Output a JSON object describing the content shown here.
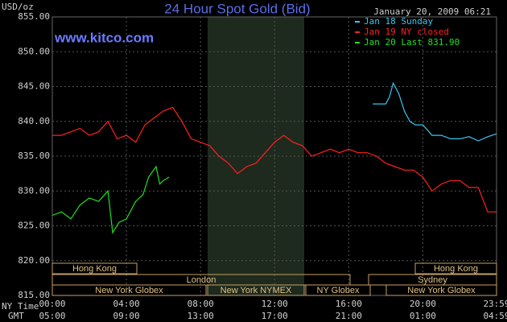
{
  "chart_data": {
    "type": "line",
    "title": "24 Hour Spot Gold (Bid)",
    "website": "www.kitco.com",
    "timestamp": "January 20, 2009 06:21",
    "y_label": "USD/oz",
    "x_label": "NY Time",
    "x2_label": "GMT",
    "xlim": [
      0,
      23.98
    ],
    "ylim": [
      815,
      855
    ],
    "grid": true,
    "yticks": [
      {
        "value": 815,
        "label": "815.00"
      },
      {
        "value": 820,
        "label": "820.00"
      },
      {
        "value": 825,
        "label": "825.00"
      },
      {
        "value": 830,
        "label": "830.00"
      },
      {
        "value": 835,
        "label": "835.00"
      },
      {
        "value": 840,
        "label": "840.00"
      },
      {
        "value": 845,
        "label": "845.00"
      },
      {
        "value": 850,
        "label": "850.00"
      },
      {
        "value": 855,
        "label": "855.00"
      }
    ],
    "xticks": [
      {
        "value": 0,
        "label": "00:00"
      },
      {
        "value": 4,
        "label": "04:00"
      },
      {
        "value": 8,
        "label": "08:00"
      },
      {
        "value": 12,
        "label": "12:00"
      },
      {
        "value": 16,
        "label": "16:00"
      },
      {
        "value": 20,
        "label": "20:00"
      },
      {
        "value": 23.98,
        "label": "23:59"
      }
    ],
    "gmt_labels": [
      "05:00",
      "09:00",
      "13:00",
      "17:00",
      "21:00",
      "01:00",
      "04:59"
    ],
    "sessions": [
      "Hong Kong",
      "London",
      "New York Globex",
      "New York NYMEX",
      "NY Globex",
      "Sydney",
      "Hong Kong",
      "New York Globex"
    ],
    "series": [
      {
        "name": "Jan 18 Sunday",
        "color": "#33c8f0",
        "x": [
          17.3,
          18,
          18.2,
          18.4,
          18.7,
          19,
          19.3,
          19.6,
          20,
          20.5,
          21,
          21.5,
          22,
          22.5,
          23,
          23.5,
          23.98
        ],
        "values": [
          842.5,
          842.5,
          843.5,
          845.5,
          844,
          841.5,
          840,
          839.5,
          839.5,
          838,
          838,
          837.5,
          837.5,
          837.8,
          837.2,
          837.8,
          838.2
        ]
      },
      {
        "name": "Jan 19 NY closed",
        "color": "#ff2020",
        "x": [
          0,
          0.5,
          1,
          1.5,
          2,
          2.5,
          3,
          3.5,
          4,
          4.5,
          5,
          5.5,
          6,
          6.5,
          7,
          7.5,
          8,
          8.5,
          9,
          9.5,
          10,
          10.5,
          11,
          11.5,
          12,
          12.5,
          13,
          13.5,
          14,
          14.5,
          15,
          15.5,
          16,
          16.5,
          17,
          17.5,
          18,
          18.5,
          19,
          19.5,
          20,
          20.5,
          21,
          21.5,
          22,
          22.5,
          23,
          23.5,
          23.98
        ],
        "values": [
          838,
          838,
          838.5,
          839,
          838,
          838.5,
          840,
          837.5,
          838,
          837,
          839.5,
          840.5,
          841.5,
          842,
          840,
          837.5,
          837,
          836.5,
          835,
          834,
          832.5,
          833.5,
          834,
          835.5,
          837,
          838,
          837,
          836.5,
          835,
          835.5,
          836,
          835.5,
          836,
          835.5,
          835.5,
          835,
          834,
          833.5,
          833,
          833,
          832,
          830,
          831,
          831.5,
          831.5,
          830.5,
          830.5,
          827,
          827
        ]
      },
      {
        "name": "Jan 20 Last 831.90",
        "color": "#20e020",
        "x": [
          0,
          0.5,
          1,
          1.5,
          2,
          2.5,
          3,
          3.26,
          3.6,
          4,
          4.5,
          4.9,
          5.2,
          5.6,
          5.8,
          6,
          6.3
        ],
        "values": [
          826.5,
          827,
          826,
          828,
          829,
          828.5,
          830,
          824,
          825.5,
          826,
          828.5,
          829.5,
          832,
          833.5,
          831,
          831.5,
          832
        ]
      }
    ]
  }
}
